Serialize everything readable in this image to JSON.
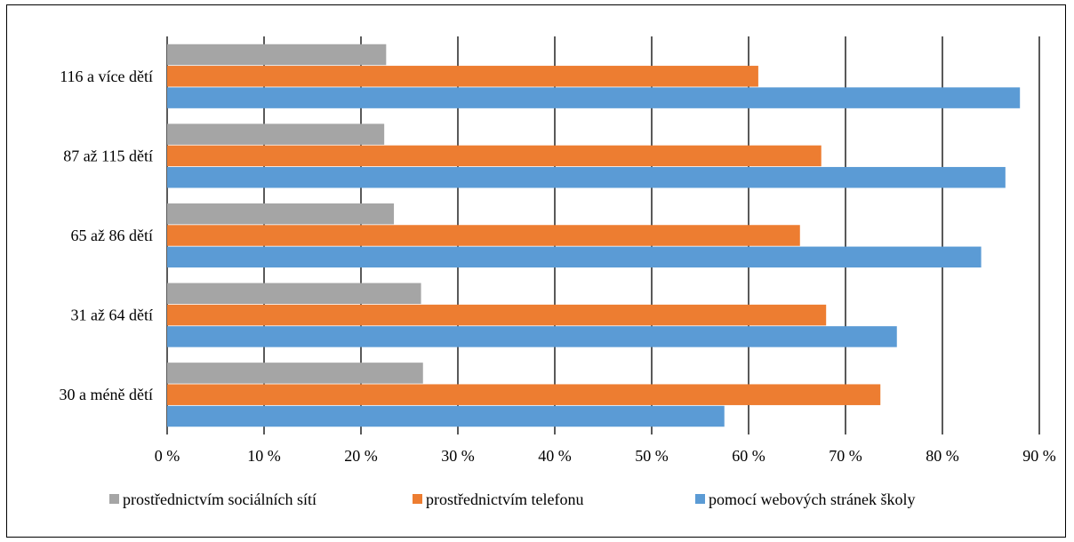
{
  "chart_data": {
    "type": "bar",
    "orientation": "horizontal",
    "categories": [
      "116 a více dětí",
      "87 až 115 dětí",
      "65 až 86 dětí",
      "31 až 64 dětí",
      "30 a méně dětí"
    ],
    "series": [
      {
        "name": "prostřednictvím sociálních sítí",
        "color": "#a5a5a5",
        "values": [
          22.6,
          22.4,
          23.4,
          26.2,
          26.4
        ]
      },
      {
        "name": "prostřednictvím telefonu",
        "color": "#ed7d31",
        "values": [
          61.0,
          67.5,
          65.3,
          68.0,
          73.6
        ]
      },
      {
        "name": "pomocí webových stránek školy",
        "color": "#5b9bd5",
        "values": [
          88.0,
          86.5,
          84.0,
          75.3,
          57.5
        ]
      }
    ],
    "xlim": [
      0,
      90
    ],
    "xticks": [
      "0 %",
      "10 %",
      "20 %",
      "30 %",
      "40 %",
      "50 %",
      "60 %",
      "70 %",
      "80 %",
      "90 %"
    ],
    "xlabel": "",
    "ylabel": "",
    "title": "",
    "grid": "vertical",
    "legend_position": "bottom"
  }
}
